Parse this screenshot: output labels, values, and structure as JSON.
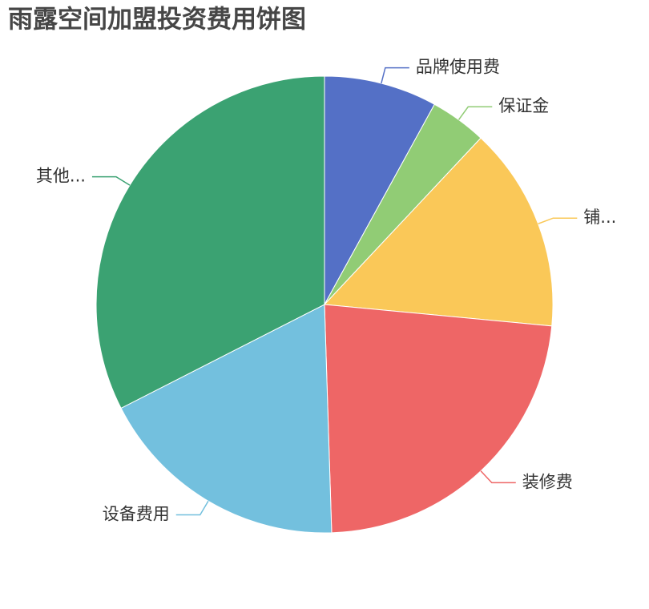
{
  "chart_data": {
    "type": "pie",
    "title": "雨露空间加盟投资费用饼图",
    "categories": [
      "品牌使用费",
      "保证金",
      "铺...",
      "装修费",
      "设备费用",
      "其他..."
    ],
    "values": [
      8,
      4,
      14.5,
      23,
      18,
      32.5
    ],
    "colors": [
      "#5470c6",
      "#91cc75",
      "#fac858",
      "#ee6666",
      "#73c0de",
      "#3ba272"
    ]
  }
}
